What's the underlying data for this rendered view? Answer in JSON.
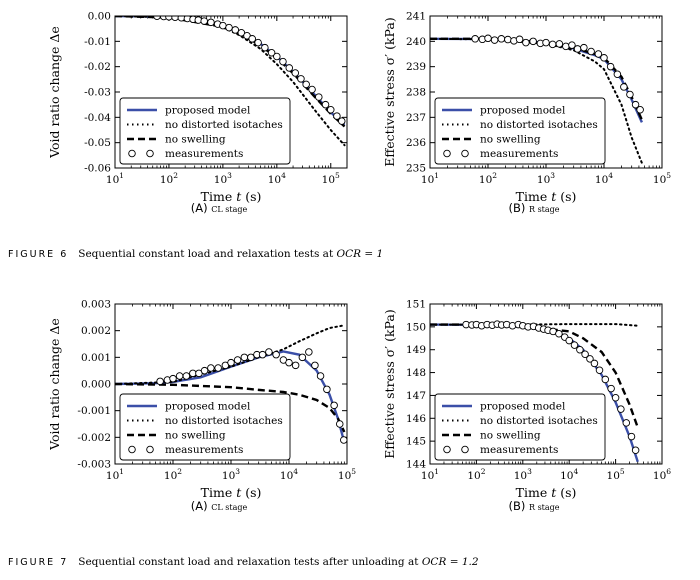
{
  "captions": {
    "fig6": {
      "number": "FIGURE 6",
      "text": "Sequential constant load and relaxation tests at ",
      "ocr": "OCR = 1"
    },
    "fig7": {
      "number": "FIGURE 7",
      "text": "Sequential constant load and relaxation tests after unloading at ",
      "ocr": "OCR = 1.2"
    }
  },
  "legend_labels": [
    "proposed model",
    "no distorted isotaches",
    "no swelling",
    "measurements"
  ],
  "colors": {
    "model": "#3b4fa8",
    "other": "#000000",
    "marker_face": "#ffffff"
  },
  "chart_data": [
    {
      "id": "fig6a",
      "type": "line",
      "panel": "(A)",
      "subtitle": "CL stage",
      "xlabel": "Time t (s)",
      "ylabel": "Void ratio change Δe",
      "xscale": "log",
      "xlim": [
        10,
        200000
      ],
      "xticks": [
        "10^1",
        "10^2",
        "10^3",
        "10^4",
        "10^5"
      ],
      "ylim": [
        -0.06,
        0.0
      ],
      "yticks": [
        "0.00",
        "-0.01",
        "-0.02",
        "-0.03",
        "-0.04",
        "-0.05",
        "-0.06"
      ],
      "legend": "lower-left",
      "series": [
        {
          "name": "proposed model",
          "style": "solid",
          "x": [
            10,
            50,
            100,
            300,
            1000,
            2000,
            5000,
            10000,
            20000,
            50000,
            100000,
            180000
          ],
          "y": [
            0,
            -0.0002,
            -0.0005,
            -0.0015,
            -0.004,
            -0.0065,
            -0.011,
            -0.016,
            -0.022,
            -0.031,
            -0.038,
            -0.043
          ]
        },
        {
          "name": "no distorted isotaches",
          "style": "dotted",
          "x": [
            10,
            100,
            300,
            1000,
            2000,
            5000,
            10000,
            20000,
            50000,
            100000,
            180000
          ],
          "y": [
            0,
            -0.0005,
            -0.0016,
            -0.0045,
            -0.0075,
            -0.013,
            -0.019,
            -0.026,
            -0.037,
            -0.045,
            -0.051
          ]
        },
        {
          "name": "no swelling",
          "style": "dashed",
          "x": [
            10,
            100,
            1000,
            2000,
            5000,
            10000,
            20000,
            50000,
            100000,
            180000
          ],
          "y": [
            0,
            -0.0006,
            -0.0043,
            -0.007,
            -0.0116,
            -0.0166,
            -0.0226,
            -0.0318,
            -0.0386,
            -0.0436
          ]
        },
        {
          "name": "measurements",
          "style": "markers",
          "x": [
            60,
            80,
            100,
            130,
            170,
            220,
            280,
            350,
            450,
            600,
            800,
            1000,
            1300,
            1700,
            2200,
            2800,
            3500,
            4500,
            6000,
            8000,
            10000,
            13000,
            17000,
            22000,
            28000,
            35000,
            45000,
            60000,
            80000,
            100000,
            130000,
            160000
          ],
          "y": [
            -0.0001,
            -0.0002,
            -0.0003,
            -0.0005,
            -0.0007,
            -0.001,
            -0.0013,
            -0.0016,
            -0.002,
            -0.0025,
            -0.0032,
            -0.0038,
            -0.0046,
            -0.0055,
            -0.0066,
            -0.0078,
            -0.009,
            -0.0105,
            -0.0125,
            -0.0145,
            -0.016,
            -0.018,
            -0.0205,
            -0.0225,
            -0.0248,
            -0.027,
            -0.029,
            -0.032,
            -0.035,
            -0.037,
            -0.0395,
            -0.0415
          ]
        }
      ]
    },
    {
      "id": "fig6b",
      "type": "line",
      "panel": "(B)",
      "subtitle": "R stage",
      "xlabel": "Time t (s)",
      "ylabel": "Effective stress σ′ (kPa)",
      "xscale": "log",
      "xlim": [
        10,
        100000
      ],
      "xticks": [
        "10^1",
        "10^2",
        "10^3",
        "10^4",
        "10^5"
      ],
      "ylim": [
        235,
        241
      ],
      "yticks": [
        "241",
        "240",
        "239",
        "238",
        "237",
        "236",
        "235"
      ],
      "legend": "lower-left",
      "series": [
        {
          "name": "proposed model",
          "style": "solid",
          "x": [
            10,
            100,
            500,
            1000,
            3000,
            7000,
            10000,
            20000,
            30000,
            45000
          ],
          "y": [
            240.1,
            240.09,
            240.0,
            239.93,
            239.72,
            239.45,
            239.3,
            238.5,
            237.7,
            236.8
          ]
        },
        {
          "name": "no distorted isotaches",
          "style": "dotted",
          "x": [
            10,
            100,
            1000,
            3000,
            7000,
            10000,
            20000,
            30000,
            45000
          ],
          "y": [
            240.1,
            240.08,
            239.9,
            239.65,
            239.2,
            238.9,
            237.5,
            236.2,
            235.2
          ]
        },
        {
          "name": "no swelling",
          "style": "dashed",
          "x": [
            10,
            100,
            500,
            1000,
            3000,
            7000,
            10000,
            20000,
            30000,
            45000
          ],
          "y": [
            240.1,
            240.1,
            240.01,
            239.95,
            239.75,
            239.5,
            239.35,
            238.6,
            237.8,
            236.9
          ]
        },
        {
          "name": "measurements",
          "style": "markers",
          "x": [
            60,
            80,
            100,
            130,
            170,
            220,
            280,
            350,
            450,
            600,
            800,
            1000,
            1300,
            1700,
            2200,
            2800,
            3500,
            4500,
            6000,
            8000,
            10000,
            13000,
            17000,
            22000,
            28000,
            35000,
            42000
          ],
          "y": [
            240.1,
            240.08,
            240.12,
            240.05,
            240.1,
            240.07,
            240.02,
            240.08,
            239.95,
            240.0,
            239.92,
            239.95,
            239.88,
            239.9,
            239.8,
            239.85,
            239.7,
            239.75,
            239.6,
            239.5,
            239.35,
            239.0,
            238.7,
            238.2,
            237.9,
            237.5,
            237.3
          ]
        }
      ]
    },
    {
      "id": "fig7a",
      "type": "line",
      "panel": "(A)",
      "subtitle": "CL stage",
      "xlabel": "Time t (s)",
      "ylabel": "Void ratio change Δe",
      "xscale": "log",
      "xlim": [
        10,
        100000
      ],
      "xticks": [
        "10^1",
        "10^2",
        "10^3",
        "10^4",
        "10^5"
      ],
      "ylim": [
        -0.003,
        0.003
      ],
      "yticks": [
        "0.003",
        "0.002",
        "0.001",
        "0.000",
        "-0.001",
        "-0.002",
        "-0.003"
      ],
      "legend": "lower-left",
      "series": [
        {
          "name": "proposed model",
          "style": "solid",
          "x": [
            10,
            50,
            100,
            300,
            1000,
            3000,
            8000,
            15000,
            30000,
            50000,
            70000,
            90000
          ],
          "y": [
            0,
            3e-05,
            8e-05,
            0.00025,
            0.00065,
            0.001,
            0.00122,
            0.0011,
            0.0005,
            -0.0004,
            -0.0013,
            -0.0022
          ]
        },
        {
          "name": "no distorted isotaches",
          "style": "dotted",
          "x": [
            10,
            100,
            1000,
            3000,
            8000,
            15000,
            30000,
            50000,
            90000
          ],
          "y": [
            0,
            8e-05,
            0.00065,
            0.001,
            0.0013,
            0.0016,
            0.0019,
            0.0021,
            0.0022
          ]
        },
        {
          "name": "no swelling",
          "style": "dashed",
          "x": [
            10,
            100,
            1000,
            3000,
            8000,
            15000,
            30000,
            50000,
            70000,
            90000
          ],
          "y": [
            0,
            -3e-05,
            -0.00012,
            -0.00022,
            -0.0003,
            -0.0004,
            -0.0006,
            -0.0009,
            -0.0013,
            -0.0018
          ]
        },
        {
          "name": "measurements",
          "style": "markers",
          "x": [
            60,
            80,
            100,
            130,
            170,
            220,
            280,
            350,
            450,
            600,
            800,
            1000,
            1300,
            1700,
            2200,
            2800,
            3500,
            4500,
            6000,
            8000,
            10000,
            13000,
            17000,
            22000,
            28000,
            35000,
            45000,
            60000,
            75000,
            88000
          ],
          "y": [
            0.0001,
            0.00015,
            0.0002,
            0.0003,
            0.0003,
            0.0004,
            0.0004,
            0.0005,
            0.0006,
            0.0006,
            0.0007,
            0.0008,
            0.0009,
            0.001,
            0.001,
            0.0011,
            0.0011,
            0.0012,
            0.0011,
            0.0009,
            0.0008,
            0.0007,
            0.001,
            0.0012,
            0.0007,
            0.0003,
            -0.0002,
            -0.0008,
            -0.0015,
            -0.0021
          ]
        }
      ]
    },
    {
      "id": "fig7b",
      "type": "line",
      "panel": "(B)",
      "subtitle": "R stage",
      "xlabel": "Time t (s)",
      "ylabel": "Effective stress σ′ (kPa)",
      "xscale": "log",
      "xlim": [
        10,
        1000000
      ],
      "xticks": [
        "10^1",
        "10^2",
        "10^3",
        "10^4",
        "10^5",
        "10^6"
      ],
      "ylim": [
        144,
        151
      ],
      "yticks": [
        "151",
        "150",
        "149",
        "148",
        "147",
        "146",
        "145",
        "144"
      ],
      "legend": "lower-left",
      "series": [
        {
          "name": "proposed model",
          "style": "solid",
          "x": [
            10,
            100,
            1000,
            5000,
            10000,
            20000,
            50000,
            100000,
            200000,
            300000
          ],
          "y": [
            150.1,
            150.09,
            150.0,
            149.8,
            149.5,
            149.0,
            147.9,
            146.7,
            145.2,
            144.1
          ]
        },
        {
          "name": "no distorted isotaches",
          "style": "dotted",
          "x": [
            10,
            100,
            1000,
            10000,
            100000,
            300000
          ],
          "y": [
            150.1,
            150.1,
            150.1,
            150.12,
            150.12,
            150.05
          ]
        },
        {
          "name": "no swelling",
          "style": "dashed",
          "x": [
            10,
            100,
            1000,
            10000,
            20000,
            50000,
            100000,
            200000,
            300000
          ],
          "y": [
            150.1,
            150.1,
            150.05,
            149.8,
            149.5,
            148.9,
            148.0,
            146.6,
            145.6
          ]
        },
        {
          "name": "measurements",
          "style": "markers",
          "x": [
            60,
            80,
            100,
            130,
            170,
            220,
            280,
            350,
            450,
            600,
            800,
            1000,
            1300,
            1700,
            2200,
            2800,
            3500,
            4500,
            6000,
            8000,
            10000,
            13000,
            17000,
            22000,
            28000,
            35000,
            45000,
            60000,
            80000,
            100000,
            130000,
            170000,
            220000,
            270000
          ],
          "y": [
            150.1,
            150.08,
            150.1,
            150.05,
            150.1,
            150.07,
            150.12,
            150.08,
            150.1,
            150.05,
            150.1,
            150.05,
            150.0,
            150.02,
            149.95,
            149.9,
            149.85,
            149.8,
            149.7,
            149.55,
            149.4,
            149.2,
            149.0,
            148.8,
            148.6,
            148.4,
            148.1,
            147.7,
            147.3,
            146.9,
            146.4,
            145.8,
            145.2,
            144.6
          ]
        }
      ]
    }
  ]
}
